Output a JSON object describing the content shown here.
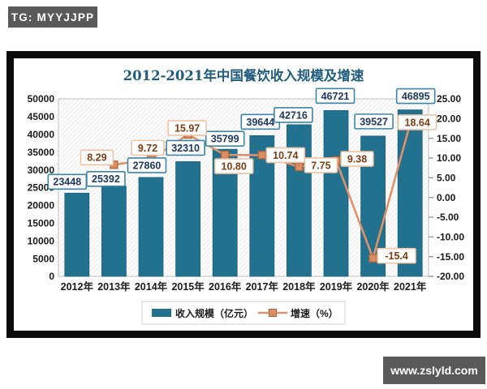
{
  "badges": {
    "telegram": "TG: MYYJJPP",
    "website": "www.zslyld.com"
  },
  "chart_data": {
    "type": "combo-bar-line",
    "title": "2012-2021年中国餐饮收入规模及增速",
    "categories": [
      "2012年",
      "2013年",
      "2014年",
      "2015年",
      "2016年",
      "2017年",
      "2018年",
      "2019年",
      "2020年",
      "2021年"
    ],
    "series": [
      {
        "name": "收入规模（亿元）",
        "type": "bar",
        "axis": "left",
        "color": "#21718F",
        "values": [
          23448,
          25392,
          27860,
          32310,
          35799,
          39644,
          42716,
          46721,
          39527,
          46895
        ],
        "labels": [
          "23448",
          "25392",
          "27860",
          "32310",
          "35799",
          "39644",
          "42716",
          "46721",
          "39527",
          "46895"
        ]
      },
      {
        "name": "增速（%）",
        "type": "line",
        "axis": "right",
        "color": "#E09169",
        "marker_color": "#DC8C61",
        "marker_border": "#B4663E",
        "values": [
          null,
          8.29,
          9.72,
          15.97,
          10.8,
          10.74,
          7.75,
          9.38,
          -15.4,
          18.64
        ],
        "labels": [
          "",
          "8.29",
          "9.72",
          "15.97",
          "10.80",
          "10.74",
          "7.75",
          "9.38",
          "-15.4",
          "18.64"
        ]
      }
    ],
    "left_axis": {
      "min": 0,
      "max": 50000,
      "step": 5000,
      "tick_labels": [
        "50000",
        "45000",
        "40000",
        "35000",
        "30000",
        "25000",
        "20000",
        "15000",
        "10000",
        "5000",
        "0"
      ]
    },
    "right_axis": {
      "min": -20,
      "max": 25,
      "step": 5,
      "tick_labels": [
        "25.00",
        "20.00",
        "15.00",
        "10.00",
        "5.00",
        "0.00",
        "-5.00",
        "-10.00",
        "-15.00",
        "-20.00"
      ]
    },
    "legend": {
      "position": "bottom",
      "items": [
        "收入规模（亿元）",
        "增速（%）"
      ]
    },
    "grid": false,
    "plot_background": "diagonal-hatch",
    "styles": {
      "title_color": "#1F5C7E",
      "bar_label_text": "#1F3864",
      "bar_label_border": "#3C85A8",
      "line_label_text": "#7F3B12",
      "line_label_border": "#ECC3A4",
      "plot_border": "#BFBFBF",
      "axis_text": "#1A1A1A",
      "badge_bg": "#595959"
    }
  }
}
